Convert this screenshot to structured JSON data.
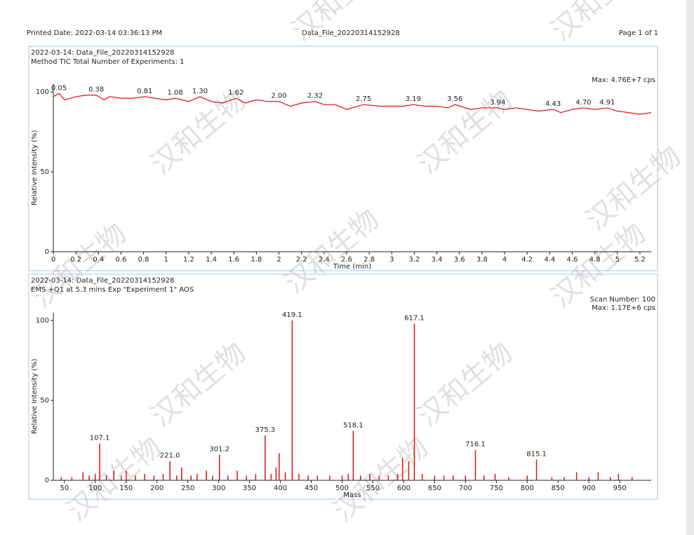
{
  "header": {
    "printed": "Printed Date: 2022-03-14 03:36:13 PM",
    "file": "Data_File_20220314152928",
    "page": "Page 1 of 1"
  },
  "watermark": "汉和生物",
  "chart_data": [
    {
      "type": "line",
      "title": "2022-03-14: Data_File_20220314152928",
      "subtitle": "Method TIC  Total Number of Experiments: 1",
      "annotations": [
        "Max: 4.76E+7 cps"
      ],
      "xlabel": "Time (min)",
      "ylabel": "Relative Intensity (%)",
      "color": "#e01010",
      "x": [
        0,
        0.05,
        0.1,
        0.2,
        0.3,
        0.38,
        0.45,
        0.5,
        0.6,
        0.7,
        0.81,
        0.9,
        1.0,
        1.08,
        1.2,
        1.3,
        1.4,
        1.5,
        1.62,
        1.7,
        1.8,
        1.9,
        2.0,
        2.1,
        2.2,
        2.32,
        2.4,
        2.5,
        2.6,
        2.75,
        2.9,
        3.0,
        3.1,
        3.19,
        3.3,
        3.4,
        3.5,
        3.56,
        3.7,
        3.8,
        3.94,
        4.0,
        4.1,
        4.2,
        4.3,
        4.43,
        4.5,
        4.6,
        4.7,
        4.8,
        4.91,
        5.0,
        5.1,
        5.2,
        5.3
      ],
      "values": [
        97,
        99,
        95,
        97,
        98,
        98,
        95,
        97,
        96,
        96,
        97,
        96,
        95,
        96,
        94,
        97,
        94,
        93,
        96,
        93,
        95,
        94,
        94,
        91,
        93,
        94,
        92,
        92,
        89,
        92,
        91,
        91,
        91,
        92,
        91,
        91,
        90,
        92,
        89,
        90,
        90,
        89,
        90,
        89,
        88,
        89,
        87,
        89,
        90,
        89,
        90,
        88,
        87,
        86,
        87
      ],
      "peak_x": [
        0.05,
        0.38,
        0.81,
        1.08,
        1.3,
        1.62,
        2.0,
        2.32,
        2.75,
        3.19,
        3.56,
        3.94,
        4.43,
        4.7,
        4.91
      ],
      "peak_labels": [
        "0.05",
        "0.38",
        "0.81",
        "1.08",
        "1.30",
        "1.62",
        "2.00",
        "2.32",
        "2.75",
        "3.19",
        "3.56",
        "3.94",
        "4.43",
        "4.70",
        "4.91"
      ],
      "xlim": [
        0,
        5.3
      ],
      "ylim": [
        0,
        105
      ],
      "xticks": [
        0,
        0.2,
        0.4,
        0.6,
        0.8,
        1,
        1.2,
        1.4,
        1.6,
        1.8,
        2,
        2.2,
        2.4,
        2.6,
        2.8,
        3,
        3.2,
        3.4,
        3.6,
        3.8,
        4,
        4.2,
        4.4,
        4.6,
        4.8,
        5,
        5.2
      ],
      "yticks": [
        0,
        50,
        100
      ]
    },
    {
      "type": "stick",
      "title": "2022-03-14: Data_File_20220314152928",
      "subtitle": "EMS +Q1 at 5.3 mins Exp \"Experiment 1\" AOS",
      "annotations": [
        "Scan Number: 100",
        "Max: 1.17E+6 cps"
      ],
      "xlabel": "Mass",
      "ylabel": "Relative Intensity (%)",
      "color": "#e01010",
      "x": [
        45,
        62,
        80,
        90,
        100,
        107.1,
        118,
        130,
        142,
        150,
        165,
        180,
        195,
        210,
        221.0,
        232,
        240,
        255,
        265,
        280,
        290,
        301.2,
        315,
        330,
        345,
        360,
        375.3,
        385,
        393,
        398,
        408,
        419.1,
        430,
        445,
        460,
        480,
        500,
        510,
        518.1,
        530,
        545,
        560,
        575,
        590,
        598,
        608,
        617.1,
        630,
        650,
        665,
        680,
        700,
        716.1,
        730,
        748,
        770,
        800,
        815.1,
        840,
        860,
        880,
        900,
        915,
        935,
        948,
        970
      ],
      "values": [
        2,
        2,
        5,
        3,
        4,
        23,
        3,
        6,
        3,
        6,
        3,
        4,
        3,
        4,
        12,
        3,
        8,
        3,
        4,
        6,
        3,
        16,
        3,
        6,
        3,
        4,
        28,
        4,
        8,
        17,
        5,
        100,
        4,
        3,
        3,
        3,
        3,
        4,
        31,
        3,
        4,
        3,
        3,
        4,
        14,
        12,
        98,
        4,
        3,
        3,
        3,
        3,
        19,
        3,
        4,
        2,
        3,
        13,
        2,
        2,
        5,
        2,
        5,
        2,
        4,
        2
      ],
      "peak_x": [
        107.1,
        221.0,
        301.2,
        375.3,
        419.1,
        518.1,
        617.1,
        716.1,
        815.1
      ],
      "peak_labels": [
        "107.1",
        "221.0",
        "301.2",
        "375.3",
        "419.1",
        "518.1",
        "617.1",
        "716.1",
        "815.1"
      ],
      "xlim": [
        32,
        1001
      ],
      "ylim": [
        0,
        105
      ],
      "xticks": [
        50,
        100,
        150,
        200,
        250,
        300,
        350,
        400,
        450,
        500,
        550,
        600,
        650,
        700,
        750,
        800,
        850,
        900,
        950
      ],
      "yticks": [
        0,
        50,
        100
      ]
    }
  ]
}
